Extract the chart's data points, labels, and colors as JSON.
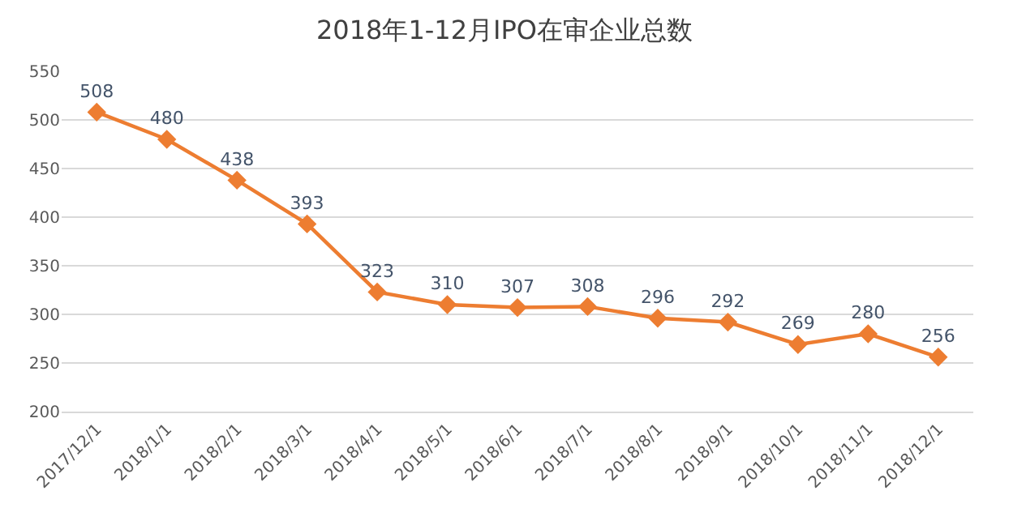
{
  "chart_data": {
    "type": "line",
    "title": "2018年1-12月IPO在审企业总数",
    "categories": [
      "2017/12/1",
      "2018/1/1",
      "2018/2/1",
      "2018/3/1",
      "2018/4/1",
      "2018/5/1",
      "2018/6/1",
      "2018/7/1",
      "2018/8/1",
      "2018/9/1",
      "2018/10/1",
      "2018/11/1",
      "2018/12/1"
    ],
    "series": [
      {
        "color": "#ed7d31",
        "values": [
          508,
          480,
          438,
          393,
          323,
          310,
          307,
          308,
          296,
          292,
          269,
          280,
          256
        ]
      }
    ],
    "ylim": [
      200,
      550
    ],
    "yticks": [
      200,
      250,
      300,
      350,
      400,
      450,
      500,
      550
    ],
    "grid": "y",
    "marker": "diamond",
    "line_style": "solid",
    "data_labels": true
  }
}
